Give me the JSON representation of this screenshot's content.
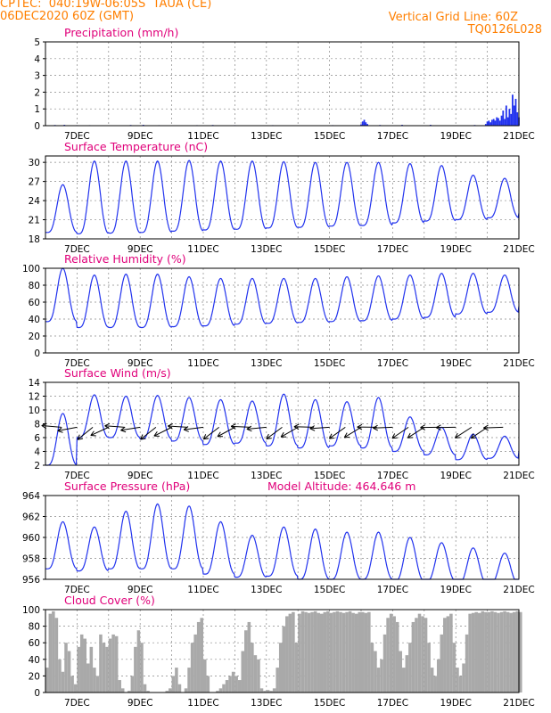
{
  "header": {
    "line1": "CPTEC:  040:19W-06:05S  TAUA (CE)",
    "line2": "06DEC2020 60Z (GMT)",
    "right1": "Vertical Grid Line: 60Z",
    "right2": "TQ0126L028"
  },
  "chart_data": [
    {
      "type": "bar",
      "title": "Precipitation (mm/h)",
      "x_labels": [
        "7DEC",
        "9DEC",
        "11DEC",
        "13DEC",
        "15DEC",
        "17DEC",
        "19DEC",
        "21DEC"
      ],
      "x_range_days": [
        6.0,
        21.0
      ],
      "ylim": [
        0,
        5
      ],
      "yticks": [
        0,
        1,
        2,
        3,
        4,
        5
      ],
      "color": "#2233ee",
      "bars": [
        [
          6.3,
          0.04
        ],
        [
          6.6,
          0.05
        ],
        [
          7.0,
          0.03
        ],
        [
          7.4,
          0.03
        ],
        [
          8.0,
          0.02
        ],
        [
          8.7,
          0.04
        ],
        [
          9.1,
          0.05
        ],
        [
          9.6,
          0.03
        ],
        [
          10.2,
          0.02
        ],
        [
          10.8,
          0.03
        ],
        [
          11.3,
          0.04
        ],
        [
          12.0,
          0.03
        ],
        [
          12.6,
          0.02
        ],
        [
          13.2,
          0.03
        ],
        [
          14.0,
          0.02
        ],
        [
          15.1,
          0.03
        ],
        [
          16.0,
          0.08
        ],
        [
          16.05,
          0.25
        ],
        [
          16.1,
          0.35
        ],
        [
          16.15,
          0.2
        ],
        [
          16.2,
          0.1
        ],
        [
          16.6,
          0.04
        ],
        [
          17.3,
          0.05
        ],
        [
          18.2,
          0.05
        ],
        [
          19.6,
          0.04
        ],
        [
          19.95,
          0.1
        ],
        [
          20.0,
          0.25
        ],
        [
          20.05,
          0.3
        ],
        [
          20.1,
          0.2
        ],
        [
          20.15,
          0.35
        ],
        [
          20.2,
          0.4
        ],
        [
          20.25,
          0.3
        ],
        [
          20.3,
          0.5
        ],
        [
          20.35,
          0.45
        ],
        [
          20.4,
          0.3
        ],
        [
          20.45,
          0.6
        ],
        [
          20.5,
          0.9
        ],
        [
          20.55,
          0.4
        ],
        [
          20.6,
          1.2
        ],
        [
          20.65,
          0.5
        ],
        [
          20.7,
          1.0
        ],
        [
          20.75,
          0.7
        ],
        [
          20.8,
          1.85
        ],
        [
          20.85,
          1.2
        ],
        [
          20.9,
          1.6
        ],
        [
          20.95,
          0.8
        ],
        [
          21.0,
          0.5
        ]
      ]
    },
    {
      "type": "line",
      "title": "Surface Temperature (nC)",
      "x_labels": [
        "7DEC",
        "9DEC",
        "11DEC",
        "13DEC",
        "15DEC",
        "17DEC",
        "19DEC",
        "21DEC"
      ],
      "x_range_days": [
        6.0,
        21.0
      ],
      "ylim": [
        18,
        31
      ],
      "yticks": [
        18,
        21,
        24,
        27,
        30
      ],
      "daily_max": [
        26.5,
        30.2,
        30.2,
        30.2,
        30.3,
        30.2,
        30.2,
        30.1,
        30.0,
        30.0,
        30.0,
        29.8,
        29.5,
        28.0,
        27.5,
        26.0
      ],
      "daily_min": [
        19.0,
        18.8,
        18.9,
        19.0,
        19.2,
        19.4,
        19.5,
        19.7,
        19.8,
        20.0,
        20.1,
        20.5,
        20.8,
        21.0,
        21.3,
        22.0
      ]
    },
    {
      "type": "line",
      "title": "Relative Humidity (%)",
      "x_labels": [
        "7DEC",
        "9DEC",
        "11DEC",
        "13DEC",
        "15DEC",
        "17DEC",
        "19DEC",
        "21DEC"
      ],
      "x_range_days": [
        6.0,
        21.0
      ],
      "ylim": [
        0,
        100
      ],
      "yticks": [
        0,
        20,
        40,
        60,
        80,
        100
      ],
      "daily_max": [
        100,
        92,
        93,
        93,
        90,
        88,
        88,
        88,
        88,
        90,
        91,
        92,
        94,
        94,
        92,
        96
      ],
      "daily_min": [
        37,
        30,
        30,
        30,
        31,
        32,
        34,
        35,
        36,
        37,
        38,
        40,
        42,
        46,
        48,
        55
      ]
    },
    {
      "type": "line",
      "title": "Surface Wind (m/s)",
      "x_labels": [
        "7DEC",
        "9DEC",
        "11DEC",
        "13DEC",
        "15DEC",
        "17DEC",
        "19DEC",
        "21DEC"
      ],
      "x_range_days": [
        6.0,
        21.0
      ],
      "ylim": [
        2,
        14
      ],
      "yticks": [
        2,
        4,
        6,
        8,
        10,
        12,
        14
      ],
      "daily_max": [
        9.5,
        12.2,
        12.0,
        12.1,
        11.8,
        11.5,
        11.3,
        12.3,
        11.5,
        11.2,
        11.8,
        9.0,
        7.5,
        6.5,
        6.2,
        6.0
      ],
      "daily_min": [
        2.0,
        6.0,
        6.0,
        5.8,
        5.5,
        5.0,
        5.2,
        4.8,
        4.5,
        4.8,
        4.5,
        4.0,
        3.5,
        2.8,
        3.0,
        4.0
      ],
      "arrows_y": 7.5
    },
    {
      "type": "line",
      "title": "Surface Pressure (hPa)",
      "subtitle": "Model Altitude: 464.646  m",
      "x_labels": [
        "7DEC",
        "9DEC",
        "11DEC",
        "13DEC",
        "15DEC",
        "17DEC",
        "19DEC",
        "21DEC"
      ],
      "x_range_days": [
        6.0,
        21.0
      ],
      "ylim": [
        956,
        964
      ],
      "yticks": [
        956,
        958,
        960,
        962,
        964
      ],
      "daily_max": [
        961.5,
        961.0,
        962.5,
        963.2,
        963.0,
        961.5,
        960.2,
        961.0,
        960.8,
        960.5,
        960.5,
        960.0,
        959.5,
        959.0,
        958.5,
        958.0
      ],
      "daily_min": [
        957.0,
        956.8,
        957.0,
        957.0,
        957.0,
        956.5,
        956.2,
        956.3,
        956.0,
        956.0,
        956.0,
        955.8,
        955.8,
        955.5,
        955.5,
        955.5
      ]
    },
    {
      "type": "area",
      "title": "Cloud Cover (%)",
      "x_labels": [
        "7DEC",
        "9DEC",
        "11DEC",
        "13DEC",
        "15DEC",
        "17DEC",
        "19DEC",
        "21DEC"
      ],
      "x_range_days": [
        6.0,
        21.0
      ],
      "ylim": [
        0,
        100
      ],
      "yticks": [
        0,
        20,
        40,
        60,
        80,
        100
      ],
      "color": "#a9a9a9",
      "samples": [
        [
          6.0,
          30
        ],
        [
          6.1,
          95
        ],
        [
          6.2,
          98
        ],
        [
          6.3,
          90
        ],
        [
          6.4,
          40
        ],
        [
          6.5,
          25
        ],
        [
          6.6,
          60
        ],
        [
          6.7,
          50
        ],
        [
          6.8,
          20
        ],
        [
          6.9,
          10
        ],
        [
          7.0,
          55
        ],
        [
          7.1,
          70
        ],
        [
          7.2,
          65
        ],
        [
          7.3,
          35
        ],
        [
          7.4,
          55
        ],
        [
          7.5,
          30
        ],
        [
          7.6,
          20
        ],
        [
          7.7,
          70
        ],
        [
          7.8,
          60
        ],
        [
          7.9,
          55
        ],
        [
          8.0,
          65
        ],
        [
          8.1,
          70
        ],
        [
          8.2,
          68
        ],
        [
          8.3,
          15
        ],
        [
          8.4,
          5
        ],
        [
          8.5,
          0
        ],
        [
          8.6,
          2
        ],
        [
          8.7,
          20
        ],
        [
          8.8,
          55
        ],
        [
          8.9,
          75
        ],
        [
          9.0,
          60
        ],
        [
          9.1,
          10
        ],
        [
          9.2,
          2
        ],
        [
          9.3,
          0
        ],
        [
          9.4,
          0
        ],
        [
          9.5,
          0
        ],
        [
          9.6,
          0
        ],
        [
          9.7,
          0
        ],
        [
          9.8,
          2
        ],
        [
          9.9,
          5
        ],
        [
          10.0,
          20
        ],
        [
          10.1,
          30
        ],
        [
          10.2,
          10
        ],
        [
          10.3,
          0
        ],
        [
          10.4,
          5
        ],
        [
          10.5,
          30
        ],
        [
          10.6,
          60
        ],
        [
          10.7,
          70
        ],
        [
          10.8,
          85
        ],
        [
          10.9,
          90
        ],
        [
          11.0,
          40
        ],
        [
          11.1,
          20
        ],
        [
          11.2,
          0
        ],
        [
          11.3,
          0
        ],
        [
          11.4,
          2
        ],
        [
          11.5,
          5
        ],
        [
          11.6,
          10
        ],
        [
          11.7,
          15
        ],
        [
          11.8,
          20
        ],
        [
          11.9,
          25
        ],
        [
          12.0,
          20
        ],
        [
          12.1,
          15
        ],
        [
          12.2,
          50
        ],
        [
          12.3,
          75
        ],
        [
          12.4,
          85
        ],
        [
          12.5,
          60
        ],
        [
          12.6,
          45
        ],
        [
          12.7,
          40
        ],
        [
          12.8,
          5
        ],
        [
          12.9,
          2
        ],
        [
          13.0,
          3
        ],
        [
          13.1,
          2
        ],
        [
          13.2,
          5
        ],
        [
          13.3,
          30
        ],
        [
          13.4,
          60
        ],
        [
          13.5,
          80
        ],
        [
          13.6,
          92
        ],
        [
          13.7,
          95
        ],
        [
          13.8,
          97
        ],
        [
          13.9,
          60
        ],
        [
          14.0,
          95
        ],
        [
          14.1,
          98
        ],
        [
          14.2,
          97
        ],
        [
          14.3,
          96
        ],
        [
          14.4,
          97
        ],
        [
          14.5,
          98
        ],
        [
          14.6,
          96
        ],
        [
          14.7,
          95
        ],
        [
          14.8,
          97
        ],
        [
          14.9,
          98
        ],
        [
          15.0,
          96
        ],
        [
          15.1,
          97
        ],
        [
          15.2,
          98
        ],
        [
          15.3,
          97
        ],
        [
          15.4,
          96
        ],
        [
          15.5,
          97
        ],
        [
          15.6,
          98
        ],
        [
          15.7,
          96
        ],
        [
          15.8,
          95
        ],
        [
          15.9,
          97
        ],
        [
          16.0,
          97
        ],
        [
          16.1,
          96
        ],
        [
          16.2,
          97
        ],
        [
          16.3,
          60
        ],
        [
          16.4,
          50
        ],
        [
          16.5,
          30
        ],
        [
          16.6,
          40
        ],
        [
          16.7,
          70
        ],
        [
          16.8,
          90
        ],
        [
          16.9,
          95
        ],
        [
          17.0,
          92
        ],
        [
          17.1,
          85
        ],
        [
          17.2,
          50
        ],
        [
          17.3,
          30
        ],
        [
          17.4,
          45
        ],
        [
          17.5,
          60
        ],
        [
          17.6,
          85
        ],
        [
          17.7,
          90
        ],
        [
          17.8,
          95
        ],
        [
          17.9,
          92
        ],
        [
          18.0,
          90
        ],
        [
          18.1,
          60
        ],
        [
          18.2,
          30
        ],
        [
          18.3,
          20
        ],
        [
          18.4,
          40
        ],
        [
          18.5,
          70
        ],
        [
          18.6,
          90
        ],
        [
          18.7,
          92
        ],
        [
          18.8,
          95
        ],
        [
          18.9,
          60
        ],
        [
          19.0,
          30
        ],
        [
          19.1,
          20
        ],
        [
          19.2,
          35
        ],
        [
          19.3,
          70
        ],
        [
          19.4,
          95
        ],
        [
          19.5,
          96
        ],
        [
          19.6,
          97
        ],
        [
          19.7,
          96
        ],
        [
          19.8,
          98
        ],
        [
          19.9,
          97
        ],
        [
          20.0,
          97
        ],
        [
          20.1,
          98
        ],
        [
          20.2,
          97
        ],
        [
          20.3,
          96
        ],
        [
          20.4,
          97
        ],
        [
          20.5,
          98
        ],
        [
          20.6,
          97
        ],
        [
          20.7,
          96
        ],
        [
          20.8,
          97
        ],
        [
          20.9,
          98
        ],
        [
          21.0,
          97
        ]
      ]
    }
  ]
}
